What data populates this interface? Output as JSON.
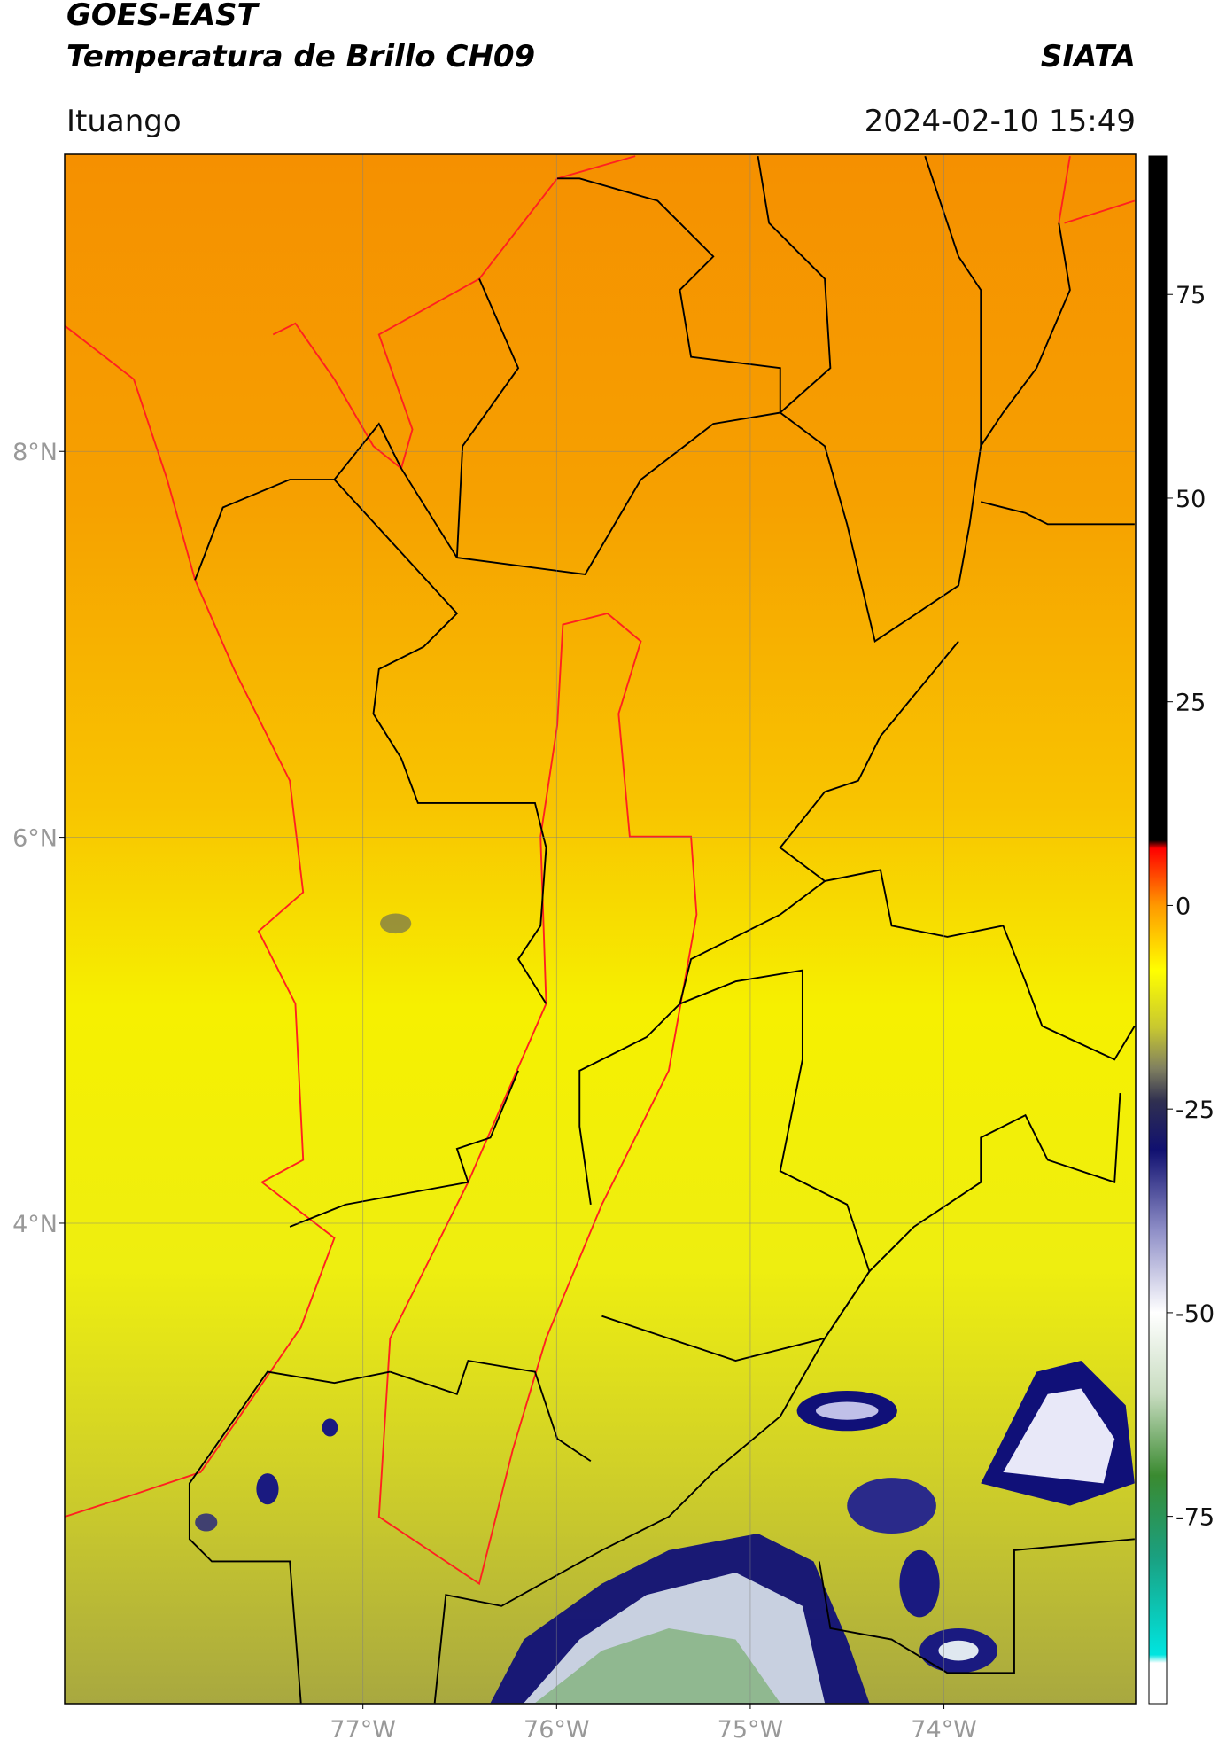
{
  "header": {
    "title": "GOES-EAST",
    "subtitle": "Temperatura de Brillo CH09",
    "source": "SIATA",
    "location": "Ituango",
    "datetime": "2024-02-10 15:49"
  },
  "map": {
    "lonlim": [
      -78.54,
      -73.01
    ],
    "latlim": [
      1.51,
      9.54
    ],
    "lon_ticks": [
      {
        "value": -77,
        "label": "77°W"
      },
      {
        "value": -76,
        "label": "76°W"
      },
      {
        "value": -75,
        "label": "75°W"
      },
      {
        "value": -74,
        "label": "74°W"
      }
    ],
    "lat_ticks": [
      {
        "value": 8,
        "label": "8°N"
      },
      {
        "value": 6,
        "label": "6°N"
      },
      {
        "value": 4,
        "label": "4°N"
      }
    ],
    "grid": true
  },
  "colorbar": {
    "lim": [
      -98,
      92
    ],
    "ticks": [
      75,
      50,
      25,
      0,
      -25,
      -50,
      -75
    ],
    "stops": [
      {
        "value": -98,
        "color": "#ffffff"
      },
      {
        "value": -93,
        "color": "#ffffff"
      },
      {
        "value": -92,
        "color": "#00e5e0"
      },
      {
        "value": -80,
        "color": "#1aa080"
      },
      {
        "value": -70,
        "color": "#3a8a30"
      },
      {
        "value": -60,
        "color": "#c8dcc0"
      },
      {
        "value": -50,
        "color": "#ffffff"
      },
      {
        "value": -40,
        "color": "#9090c8"
      },
      {
        "value": -30,
        "color": "#101070"
      },
      {
        "value": -24,
        "color": "#303050"
      },
      {
        "value": -20,
        "color": "#808060"
      },
      {
        "value": -15,
        "color": "#c8c830"
      },
      {
        "value": -8,
        "color": "#ffff00"
      },
      {
        "value": 0,
        "color": "#ff9900"
      },
      {
        "value": 7,
        "color": "#ff0000"
      },
      {
        "value": 8,
        "color": "#000000"
      },
      {
        "value": 92,
        "color": "#000000"
      }
    ]
  }
}
